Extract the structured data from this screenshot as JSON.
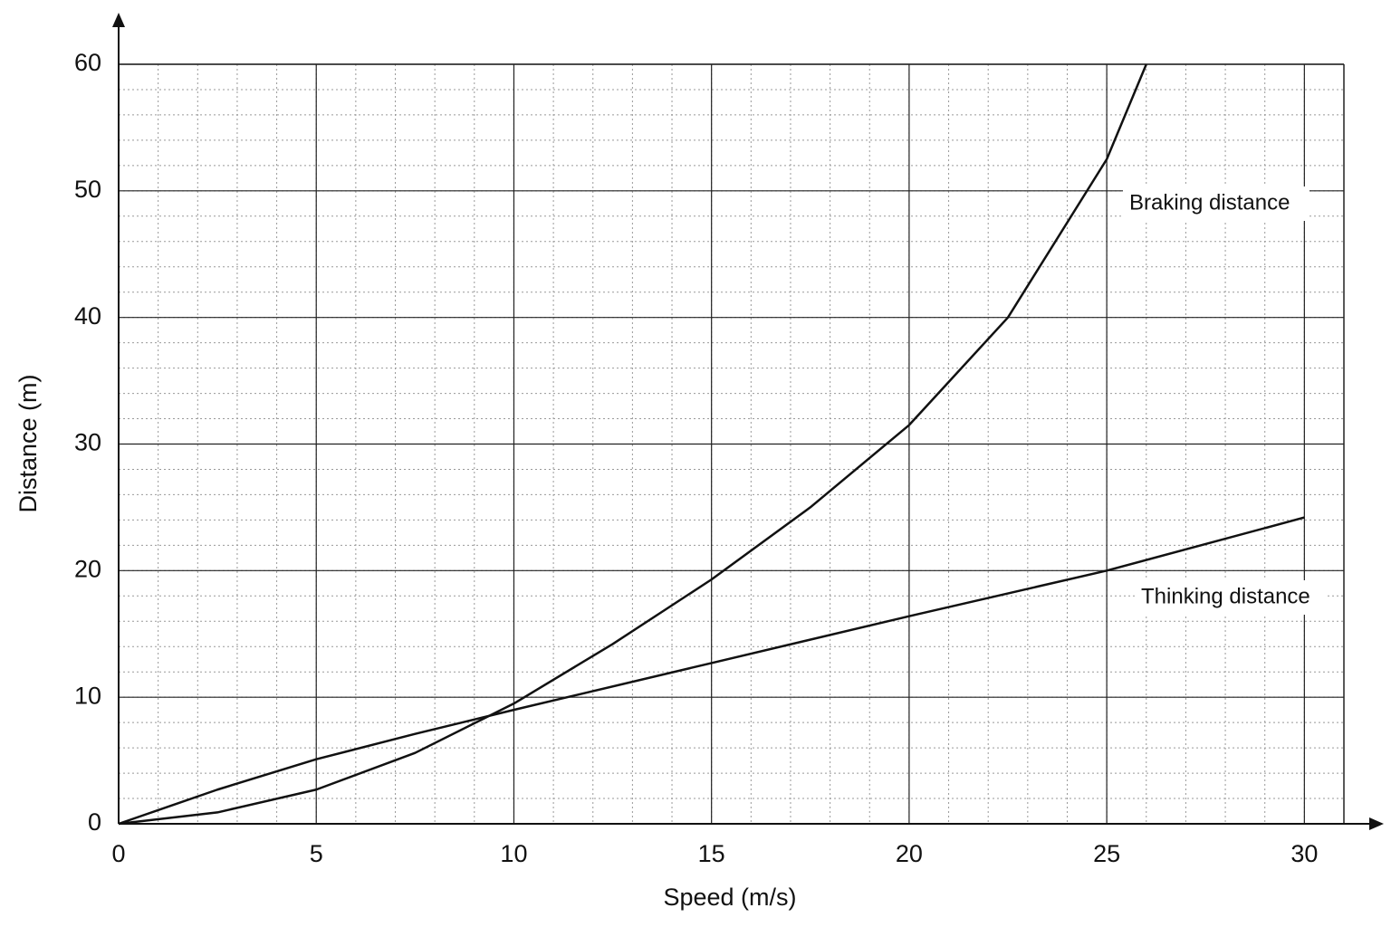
{
  "chart_data": {
    "type": "line",
    "x_label": "Speed (m/s)",
    "y_label": "Distance (m)",
    "series": [
      {
        "name": "Thinking distance",
        "color": "#111111",
        "x": [
          0,
          2.5,
          5,
          7.5,
          10,
          15,
          20,
          25,
          30
        ],
        "values": [
          0,
          2.7,
          5.1,
          7.1,
          9.0,
          12.7,
          16.4,
          20,
          24.2
        ]
      },
      {
        "name": "Braking distance",
        "color": "#111111",
        "x": [
          0,
          2.5,
          5,
          7.5,
          10,
          12.5,
          15,
          17.5,
          20,
          22.5,
          25,
          26
        ],
        "values": [
          0,
          0.9,
          2.7,
          5.6,
          9.5,
          14.2,
          19.3,
          25,
          31.5,
          40,
          52.5,
          60
        ]
      }
    ],
    "xlim": [
      0,
      31
    ],
    "xticks": [
      0,
      5,
      10,
      15,
      20,
      25,
      30
    ],
    "ylim": [
      0,
      60
    ],
    "yticks": [
      0,
      10,
      20,
      30,
      40,
      50,
      60
    ],
    "grid": true,
    "minor_grid": true
  }
}
